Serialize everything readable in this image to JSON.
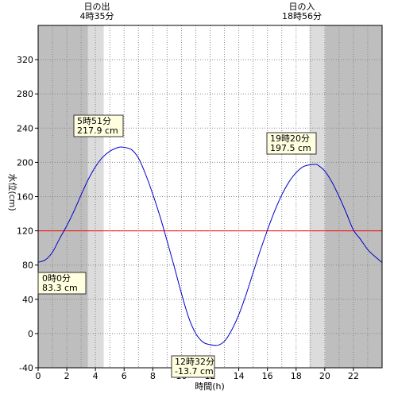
{
  "chart_data": {
    "type": "line",
    "xlabel": "時間(h)",
    "ylabel": "水位(cm)",
    "xlim": [
      0,
      24
    ],
    "ylim": [
      -40,
      360
    ],
    "x_ticks": [
      0,
      2,
      4,
      6,
      8,
      10,
      12,
      14,
      16,
      18,
      20,
      22
    ],
    "y_ticks": [
      -40,
      0,
      40,
      80,
      120,
      160,
      200,
      240,
      280,
      320
    ],
    "sunrise": {
      "label": "日の出",
      "time": "4時35分",
      "hour": 4.583
    },
    "sunset": {
      "label": "日の入",
      "time": "18時56分",
      "hour": 18.933
    },
    "reference_line": {
      "value": 120,
      "color": "#ff0000"
    },
    "series": [
      {
        "color": "#0000cc",
        "x": [
          0,
          0.5,
          1,
          1.5,
          2,
          2.5,
          3,
          3.5,
          4,
          4.5,
          5,
          5.5,
          5.85,
          6.5,
          7,
          7.5,
          8,
          8.5,
          9,
          9.5,
          10,
          10.5,
          11,
          11.5,
          12,
          12.53,
          13,
          13.5,
          14,
          14.5,
          15,
          15.5,
          16,
          16.5,
          17,
          17.5,
          18,
          18.5,
          19,
          19.33,
          19.5,
          20,
          20.5,
          21,
          21.5,
          22,
          22.5,
          23,
          23.5,
          24
        ],
        "y": [
          83.3,
          86,
          95,
          111,
          126,
          143,
          162,
          180,
          195,
          206,
          213,
          217,
          217.9,
          215,
          205,
          186,
          163,
          137,
          108,
          78,
          47,
          19,
          0,
          -10,
          -13,
          -13.7,
          -9,
          4,
          22,
          45,
          71,
          97,
          121,
          143,
          162,
          177,
          188,
          195,
          197.3,
          197.5,
          197,
          190,
          177,
          160,
          141,
          121,
          110,
          98,
          90,
          83
        ]
      }
    ],
    "annotations": [
      {
        "time": "5時51分",
        "value": "217.9 cm"
      },
      {
        "time": "19時20分",
        "value": "197.5 cm"
      },
      {
        "time": "0時0分",
        "value": "83.3 cm"
      },
      {
        "time": "12時32分",
        "value": "-13.7 cm"
      }
    ]
  }
}
